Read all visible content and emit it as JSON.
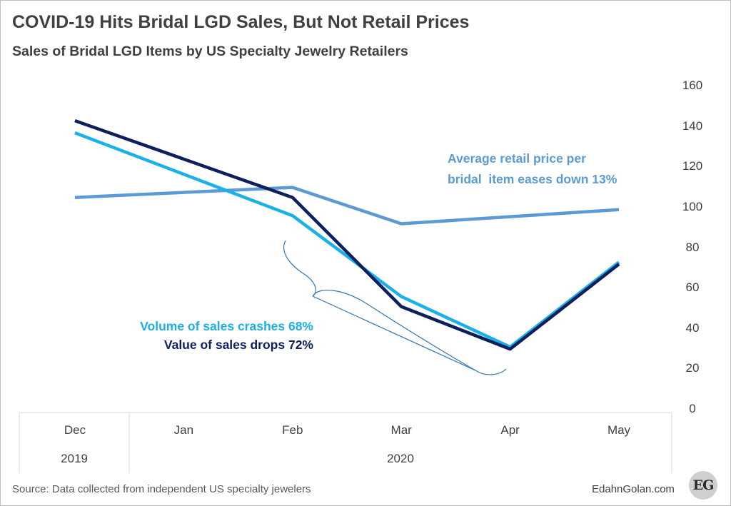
{
  "title": "COVID-19 Hits Bridal LGD Sales, But Not Retail Prices",
  "subtitle": "Sales of Bridal LGD Items by US Specialty Jewelry Retailers",
  "source": "Source: Data collected from independent US specialty jewelers",
  "site": "EdahnGolan.com",
  "logo_text": "EG",
  "annotations": {
    "price_line1": "Average retail price per",
    "price_line2": "bridal  item eases down 13%",
    "volume": "Volume of sales crashes 68%",
    "value": "Value of sales drops 72%"
  },
  "chart_data": {
    "type": "line",
    "categories": [
      "Dec",
      "Jan",
      "Feb",
      "Mar",
      "Apr",
      "May"
    ],
    "category_groups": [
      {
        "label": "2019",
        "span": 1
      },
      {
        "label": "2020",
        "span": 5
      }
    ],
    "series": [
      {
        "key": "price",
        "values": [
          105,
          null,
          110,
          92,
          null,
          99
        ],
        "color": "#5b9bd5"
      },
      {
        "key": "volume",
        "values": [
          137,
          null,
          96,
          56,
          31,
          73
        ],
        "color": "#1ab1ea"
      },
      {
        "key": "value",
        "values": [
          143,
          null,
          105,
          51,
          30,
          72
        ],
        "color": "#0d1f5c"
      }
    ],
    "y_axis": {
      "position": "right",
      "ylim": [
        0,
        160
      ],
      "ticks": [
        0,
        20,
        40,
        60,
        80,
        100,
        120,
        140,
        160
      ]
    },
    "grid": false,
    "legend": "none"
  }
}
